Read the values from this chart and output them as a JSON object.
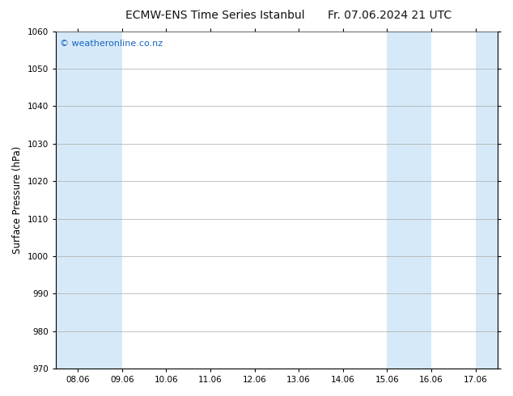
{
  "title_left": "ECMW-ENS Time Series Istanbul",
  "title_right": "Fr. 07.06.2024 21 UTC",
  "ylabel": "Surface Pressure (hPa)",
  "ylim": [
    970,
    1060
  ],
  "yticks": [
    970,
    980,
    990,
    1000,
    1010,
    1020,
    1030,
    1040,
    1050,
    1060
  ],
  "xtick_labels": [
    "08.06",
    "09.06",
    "10.06",
    "11.06",
    "12.06",
    "13.06",
    "14.06",
    "15.06",
    "16.06",
    "17.06"
  ],
  "background_color": "#ffffff",
  "plot_bg_color": "#ffffff",
  "watermark_text": "© weatheronline.co.nz",
  "watermark_color": "#1565c0",
  "watermark_fontsize": 8,
  "title_fontsize": 10,
  "tick_fontsize": 7.5,
  "ylabel_fontsize": 8.5,
  "grid_color": "#aaaaaa",
  "axis_color": "#000000",
  "shaded_color": "#d6e9f8",
  "shaded_ranges": [
    [
      0,
      1
    ],
    [
      7,
      8
    ],
    [
      9,
      10
    ]
  ]
}
